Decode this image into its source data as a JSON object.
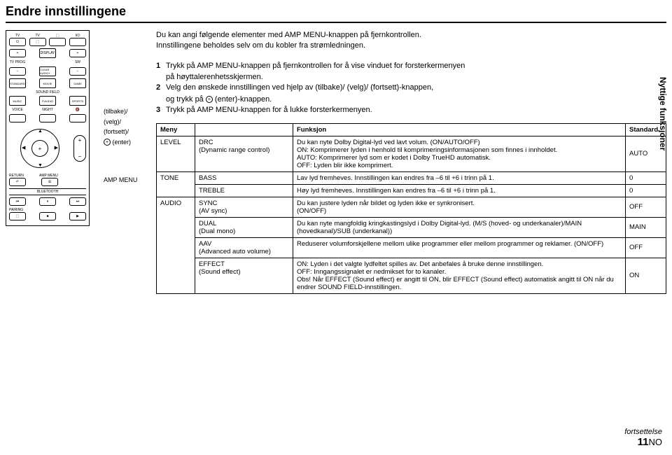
{
  "page": {
    "title": "Endre innstillingene",
    "sideLabel": "Nyttige funksjoner",
    "continuation": "fortsettelse",
    "pageNum": "11",
    "pageSuffix": "NO"
  },
  "intro": {
    "line1": "Du kan angi følgende elementer med AMP MENU-knappen på fjernkontrollen.",
    "line2": "Innstillingene beholdes selv om du kobler fra strømledningen."
  },
  "steps": {
    "s1a": "Trykk på AMP MENU-knappen på fjernkontrollen for å vise vinduet for forsterkermenyen",
    "s1b": "på høyttalerenhetsskjermen.",
    "s2a": "Velg den ønskede innstillingen ved hjelp av  (tilbake)/  (velg)/ (fortsett)-knappen,",
    "s2b": "og trykk på ",
    "s2c": " (enter)-knappen.",
    "s3": "Trykk på AMP MENU-knappen for å lukke forsterkermenyen."
  },
  "legend": {
    "l1": " (tilbake)/",
    "l2": "  (velg)/",
    "l3": " (fortsett)/",
    "l4": " (enter)",
    "amp": "AMP MENU"
  },
  "table": {
    "headers": {
      "meny": "Meny",
      "sub": "",
      "funksjon": "Funksjon",
      "standard": "Standard"
    },
    "rows": [
      {
        "meny": "LEVEL",
        "sub": "DRC\n(Dynamic range control)",
        "funk": "Du kan nyte Dolby Digital-lyd ved lavt volum. (ON/AUTO/OFF)\nON: Komprimerer lyden i henhold til komprimeringsinformasjonen som finnes i innholdet.\nAUTO: Komprimerer lyd som er kodet i Dolby TrueHD automatisk.\nOFF: Lyden blir ikke komprimert.",
        "std": "AUTO"
      },
      {
        "meny": "TONE",
        "sub": "BASS",
        "funk": "Lav lyd fremheves. Innstillingen kan endres fra –6 til +6 i trinn på 1.",
        "std": "0"
      },
      {
        "meny": "",
        "sub": "TREBLE",
        "funk": "Høy lyd fremheves. Innstillingen kan endres fra –6 til +6 i trinn på 1.",
        "std": "0"
      },
      {
        "meny": "AUDIO",
        "sub": "SYNC\n(AV sync)",
        "funk": "Du kan justere lyden når bildet og lyden ikke er synkronisert.\n(ON/OFF)",
        "std": "OFF"
      },
      {
        "meny": "",
        "sub": "DUAL\n(Dual mono)",
        "funk": "Du kan nyte mangfoldig kringkastingslyd i Dolby Digital-lyd. (M/S (hoved- og underkanaler)/MAIN (hovedkanal)/SUB (underkanal))",
        "std": "MAIN"
      },
      {
        "meny": "",
        "sub": "AAV\n(Advanced auto volume)",
        "funk": "Reduserer volumforskjellene mellom ulike programmer eller mellom programmer og reklamer. (ON/OFF)",
        "std": "OFF"
      },
      {
        "meny": "",
        "sub": "EFFECT\n(Sound effect)",
        "funk": "ON: Lyden i det valgte lydfeltet spilles av. Det anbefales å bruke denne innstillingen.\nOFF: Inngangssignalet er nedmikset for to kanaler.\nObs! Når EFFECT (Sound effect) er angitt til ON, blir EFFECT (Sound effect) automatisk angitt til ON når du endrer SOUND FIELD-innstillingen.",
        "std": "ON"
      }
    ]
  },
  "remote": {
    "row1": [
      "TV",
      "TV",
      "",
      ""
    ],
    "row2": [
      "+",
      "DISPLAY",
      "+"
    ],
    "row3": [
      "TV PROG",
      "",
      "SW"
    ],
    "row4": [
      "−",
      "CLEAR AUDIO+",
      "−"
    ],
    "sf": [
      "STANDARD",
      "MOVIE",
      "GAME"
    ],
    "sfLabel": "SOUND FIELD",
    "sf2": [
      "MUSIC",
      "P.AUDIO",
      "SPORTS"
    ],
    "modes": [
      "VOICE",
      "NIGHT",
      ""
    ],
    "bottom": [
      "RETURN",
      "AMP MENU"
    ],
    "bt": "BLUETOOTH",
    "pairing": "PAIRING"
  }
}
